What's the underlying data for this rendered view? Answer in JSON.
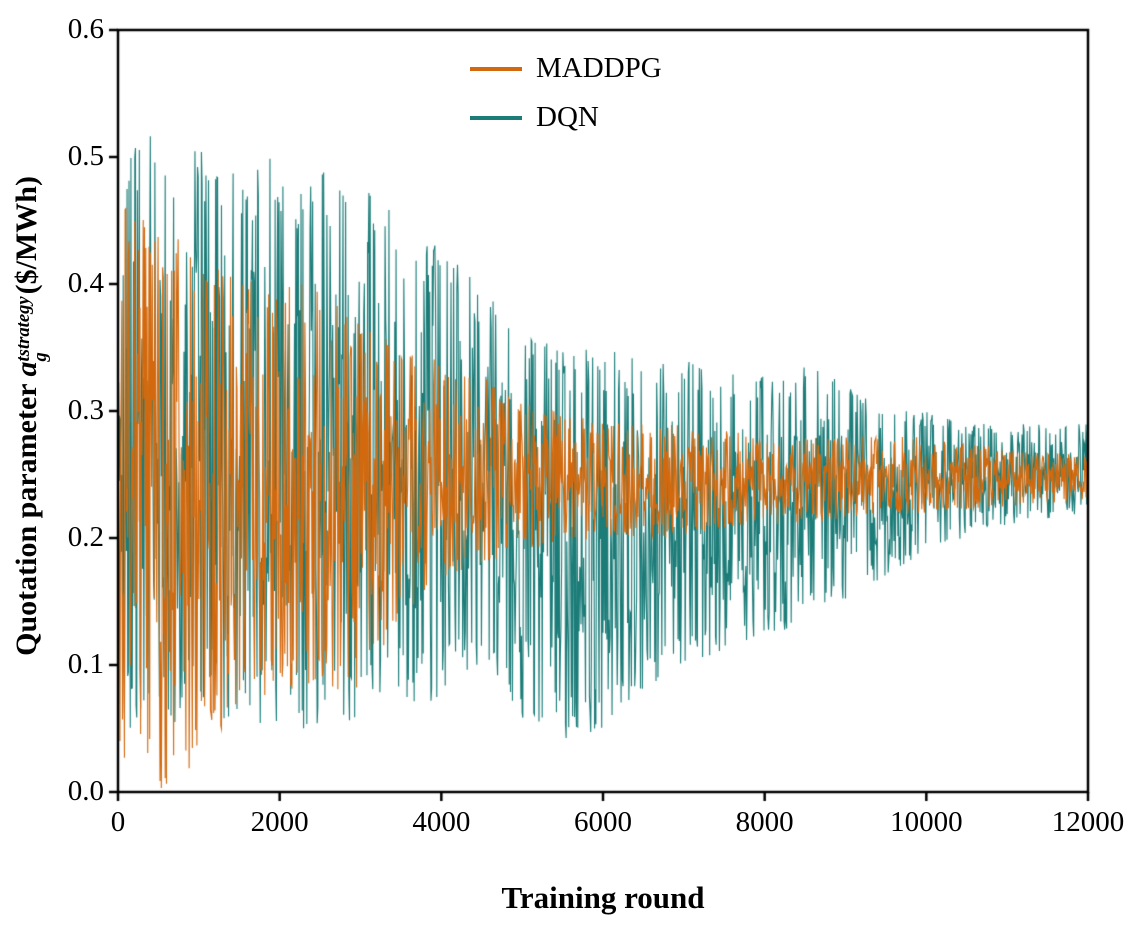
{
  "chart_data": {
    "type": "line",
    "title": "",
    "xlabel": "Training round",
    "ylabel": "Quotation parameter a_g^tstrategy ($/MWh)",
    "ylabel_parts": {
      "prefix": "Quotation parameter ",
      "var": "a",
      "sup": "tstrategy",
      "sub": "g",
      "suffix": "($/MWh)"
    },
    "xlim": [
      0,
      12000
    ],
    "ylim": [
      0,
      0.6
    ],
    "xticks": {
      "values": [
        0,
        2000,
        4000,
        6000,
        8000,
        10000,
        12000
      ],
      "labels": [
        "0",
        "2000",
        "4000",
        "6000",
        "8000",
        "10000",
        "12000"
      ]
    },
    "yticks": {
      "values": [
        0.0,
        0.1,
        0.2,
        0.3,
        0.4,
        0.5,
        0.6
      ],
      "labels": [
        "0.0",
        "0.1",
        "0.2",
        "0.3",
        "0.4",
        "0.5",
        "0.6"
      ]
    },
    "grid": false,
    "legend_position": "upper center inside",
    "axis_color": "#000000",
    "series": [
      {
        "name": "DQN",
        "color": "#1b7c78",
        "style": "noisy line; values oscillate between envelope min and max",
        "envelope": [
          {
            "x": 0,
            "min": 0.05,
            "max": 0.51
          },
          {
            "x": 500,
            "min": 0.05,
            "max": 0.52
          },
          {
            "x": 1000,
            "min": 0.06,
            "max": 0.51
          },
          {
            "x": 2000,
            "min": 0.05,
            "max": 0.5
          },
          {
            "x": 3000,
            "min": 0.05,
            "max": 0.48
          },
          {
            "x": 3500,
            "min": 0.07,
            "max": 0.45
          },
          {
            "x": 4000,
            "min": 0.07,
            "max": 0.43
          },
          {
            "x": 4500,
            "min": 0.1,
            "max": 0.4
          },
          {
            "x": 5000,
            "min": 0.05,
            "max": 0.36
          },
          {
            "x": 5500,
            "min": 0.04,
            "max": 0.35
          },
          {
            "x": 6000,
            "min": 0.05,
            "max": 0.35
          },
          {
            "x": 6500,
            "min": 0.08,
            "max": 0.34
          },
          {
            "x": 7000,
            "min": 0.1,
            "max": 0.34
          },
          {
            "x": 7500,
            "min": 0.11,
            "max": 0.33
          },
          {
            "x": 8000,
            "min": 0.12,
            "max": 0.33
          },
          {
            "x": 8500,
            "min": 0.13,
            "max": 0.34
          },
          {
            "x": 9000,
            "min": 0.15,
            "max": 0.32
          },
          {
            "x": 9500,
            "min": 0.17,
            "max": 0.3
          },
          {
            "x": 10000,
            "min": 0.19,
            "max": 0.3
          },
          {
            "x": 10500,
            "min": 0.2,
            "max": 0.29
          },
          {
            "x": 11000,
            "min": 0.21,
            "max": 0.29
          },
          {
            "x": 12000,
            "min": 0.22,
            "max": 0.29
          }
        ]
      },
      {
        "name": "MADDPG",
        "color": "#d2690e",
        "style": "noisy line; values oscillate between envelope min and max",
        "envelope": [
          {
            "x": 0,
            "min": 0.02,
            "max": 0.47
          },
          {
            "x": 300,
            "min": 0.0,
            "max": 0.47
          },
          {
            "x": 800,
            "min": 0.0,
            "max": 0.44
          },
          {
            "x": 1500,
            "min": 0.07,
            "max": 0.41
          },
          {
            "x": 2500,
            "min": 0.08,
            "max": 0.4
          },
          {
            "x": 3000,
            "min": 0.08,
            "max": 0.37
          },
          {
            "x": 3500,
            "min": 0.13,
            "max": 0.35
          },
          {
            "x": 4000,
            "min": 0.16,
            "max": 0.34
          },
          {
            "x": 4500,
            "min": 0.18,
            "max": 0.33
          },
          {
            "x": 5000,
            "min": 0.19,
            "max": 0.31
          },
          {
            "x": 6000,
            "min": 0.2,
            "max": 0.29
          },
          {
            "x": 7000,
            "min": 0.2,
            "max": 0.29
          },
          {
            "x": 8000,
            "min": 0.21,
            "max": 0.28
          },
          {
            "x": 9000,
            "min": 0.215,
            "max": 0.28
          },
          {
            "x": 10000,
            "min": 0.22,
            "max": 0.28
          },
          {
            "x": 11000,
            "min": 0.225,
            "max": 0.27
          },
          {
            "x": 12000,
            "min": 0.23,
            "max": 0.265
          }
        ]
      }
    ],
    "legend": [
      {
        "label": "MADDPG",
        "color": "#d2690e"
      },
      {
        "label": "DQN",
        "color": "#1b7c78"
      }
    ]
  }
}
